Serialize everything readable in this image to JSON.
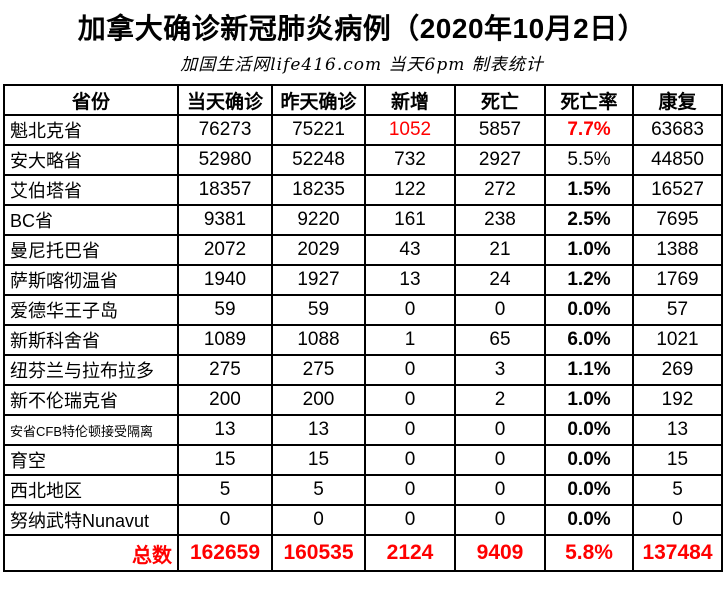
{
  "title": "加拿大确诊新冠肺炎病例（2020年10月2日）",
  "subtitle": "加国生活网life416.com 当天6pm 制表统计",
  "table": {
    "columns": [
      "省份",
      "当天确诊",
      "昨天确诊",
      "新增",
      "死亡",
      "死亡率",
      "康复"
    ],
    "rows": [
      {
        "cells": [
          "魁北克省",
          "76273",
          "75221",
          "1052",
          "5857",
          "7.7%",
          "63683"
        ],
        "new_red": true,
        "rate_red": true,
        "rate_bold": true
      },
      {
        "cells": [
          "安大略省",
          "52980",
          "52248",
          "732",
          "2927",
          "5.5%",
          "44850"
        ],
        "rate_bold": false
      },
      {
        "cells": [
          "艾伯塔省",
          "18357",
          "18235",
          "122",
          "272",
          "1.5%",
          "16527"
        ],
        "rate_bold": true
      },
      {
        "cells": [
          "BC省",
          "9381",
          "9220",
          "161",
          "238",
          "2.5%",
          "7695"
        ],
        "rate_bold": true
      },
      {
        "cells": [
          "曼尼托巴省",
          "2072",
          "2029",
          "43",
          "21",
          "1.0%",
          "1388"
        ],
        "rate_bold": true
      },
      {
        "cells": [
          "萨斯喀彻温省",
          "1940",
          "1927",
          "13",
          "24",
          "1.2%",
          "1769"
        ],
        "rate_bold": true
      },
      {
        "cells": [
          "爱德华王子岛",
          "59",
          "59",
          "0",
          "0",
          "0.0%",
          "57"
        ],
        "rate_bold": true
      },
      {
        "cells": [
          "新斯科舍省",
          "1089",
          "1088",
          "1",
          "65",
          "6.0%",
          "1021"
        ],
        "rate_bold": true
      },
      {
        "cells": [
          "纽芬兰与拉布拉多",
          "275",
          "275",
          "0",
          "3",
          "1.1%",
          "269"
        ],
        "rate_bold": true
      },
      {
        "cells": [
          "新不伦瑞克省",
          "200",
          "200",
          "0",
          "2",
          "1.0%",
          "192"
        ],
        "rate_bold": true
      },
      {
        "cells": [
          "安省CFB特伦顿接受隔离",
          "13",
          "13",
          "0",
          "0",
          "0.0%",
          "13"
        ],
        "rate_bold": true,
        "small_label": true
      },
      {
        "cells": [
          "育空",
          "15",
          "15",
          "0",
          "0",
          "0.0%",
          "15"
        ],
        "rate_bold": true
      },
      {
        "cells": [
          "西北地区",
          "5",
          "5",
          "0",
          "0",
          "0.0%",
          "5"
        ],
        "rate_bold": true
      },
      {
        "cells": [
          "努纳武特Nunavut",
          "0",
          "0",
          "0",
          "0",
          "0.0%",
          "0"
        ],
        "rate_bold": true
      }
    ],
    "totals": {
      "cells": [
        "总数",
        "162659",
        "160535",
        "2124",
        "9409",
        "5.8%",
        "137484"
      ]
    }
  },
  "colors": {
    "highlight_red": "#ff0000",
    "text": "#000000",
    "border": "#000000",
    "background": "#ffffff"
  }
}
